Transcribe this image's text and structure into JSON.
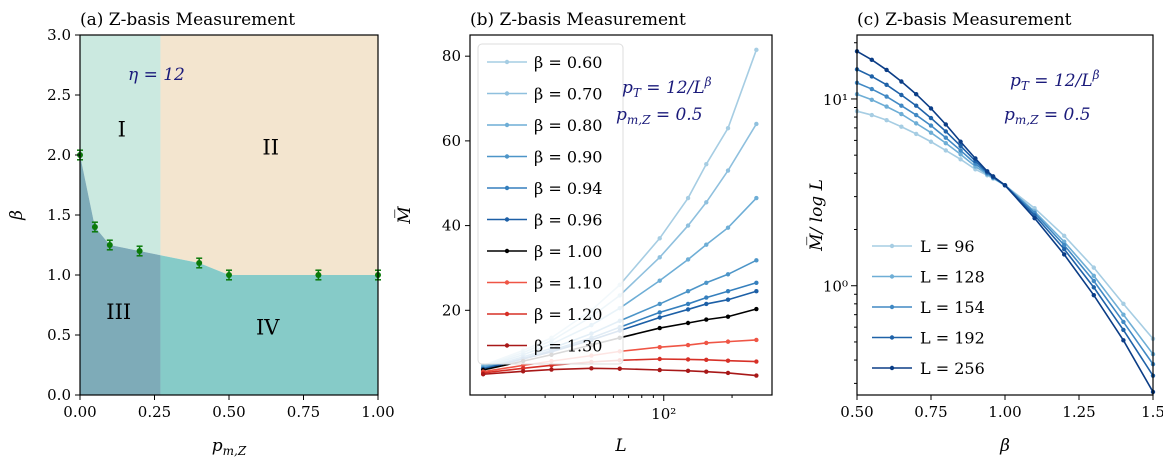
{
  "chart_data": [
    {
      "type": "phase_diagram",
      "title": "(a) Z-basis Measurement",
      "xlabel": "p_{m,Z}",
      "ylabel": "β",
      "xlim": [
        0,
        1
      ],
      "ylim": [
        0,
        3
      ],
      "xticks": [
        "0.00",
        "0.25",
        "0.50",
        "0.75",
        "1.00"
      ],
      "yticks": [
        "0.0",
        "0.5",
        "1.0",
        "1.5",
        "2.0",
        "2.5",
        "3.0"
      ],
      "annotation": "η = 12",
      "vertical_boundary_x": 0.27,
      "boundary_points": [
        {
          "x": 0.0,
          "y": 2.0
        },
        {
          "x": 0.05,
          "y": 1.4
        },
        {
          "x": 0.1,
          "y": 1.25
        },
        {
          "x": 0.2,
          "y": 1.2
        },
        {
          "x": 0.4,
          "y": 1.1
        },
        {
          "x": 0.5,
          "y": 1.0
        },
        {
          "x": 0.8,
          "y": 1.0
        },
        {
          "x": 1.0,
          "y": 1.0
        }
      ],
      "error": 0.04,
      "regions": [
        {
          "label": "I",
          "x": 0.14,
          "y": 2.2,
          "color": "#cbe9e0"
        },
        {
          "label": "II",
          "x": 0.64,
          "y": 2.05,
          "color": "#f3e5cf"
        },
        {
          "label": "III",
          "x": 0.13,
          "y": 0.68,
          "color": "#7eabb8"
        },
        {
          "label": "IV",
          "x": 0.63,
          "y": 0.55,
          "color": "#86cbc8"
        }
      ],
      "marker_color": "#0a7a0a"
    },
    {
      "type": "line",
      "title": "(b) Z-basis Measurement",
      "xlabel": "L",
      "ylabel": "M̅",
      "xscale": "log",
      "xlim": [
        14,
        300
      ],
      "ylim": [
        0,
        85
      ],
      "yticks": [
        "20",
        "40",
        "60",
        "80"
      ],
      "xtick_label": "10²",
      "x": [
        16,
        24,
        32,
        48,
        64,
        96,
        128,
        154,
        192,
        256
      ],
      "annotations": [
        "p_T = 12/L^β",
        "p_{m,Z} = 0.5"
      ],
      "series": [
        {
          "name": "β = 0.60",
          "color": "#a6cde3",
          "values": [
            7.0,
            10.5,
            13.5,
            20.0,
            26.0,
            37.0,
            46.5,
            54.5,
            63.0,
            81.5
          ]
        },
        {
          "name": "β = 0.70",
          "color": "#8fc0de",
          "values": [
            6.8,
            10.0,
            12.8,
            18.5,
            23.5,
            32.5,
            40.0,
            45.5,
            53.0,
            64.0
          ]
        },
        {
          "name": "β = 0.80",
          "color": "#6eaed6",
          "values": [
            6.6,
            9.5,
            12.0,
            16.5,
            20.5,
            27.0,
            32.0,
            35.5,
            39.5,
            46.5
          ]
        },
        {
          "name": "β = 0.90",
          "color": "#4d95c8",
          "values": [
            6.3,
            9.0,
            11.0,
            14.5,
            17.5,
            21.5,
            24.5,
            26.5,
            28.5,
            31.8
          ]
        },
        {
          "name": "β = 0.94",
          "color": "#357fbd",
          "values": [
            6.2,
            8.6,
            10.5,
            13.5,
            16.0,
            19.5,
            21.5,
            23.0,
            24.5,
            26.5
          ]
        },
        {
          "name": "β = 0.96",
          "color": "#1c5fa6",
          "values": [
            6.1,
            8.5,
            10.2,
            13.0,
            15.2,
            18.3,
            20.2,
            21.5,
            22.5,
            24.5
          ]
        },
        {
          "name": "β = 1.00",
          "color": "#000000",
          "values": [
            5.9,
            8.0,
            9.5,
            11.8,
            13.5,
            15.8,
            17.0,
            17.8,
            18.5,
            20.3
          ]
        },
        {
          "name": "β = 1.10",
          "color": "#ef5545",
          "values": [
            5.5,
            7.0,
            8.0,
            9.3,
            10.3,
            11.3,
            11.8,
            12.3,
            12.6,
            13.0
          ]
        },
        {
          "name": "β = 1.20",
          "color": "#d73027",
          "values": [
            5.2,
            6.3,
            7.0,
            7.8,
            8.2,
            8.5,
            8.4,
            8.3,
            8.1,
            7.9
          ]
        },
        {
          "name": "β = 1.30",
          "color": "#a81818",
          "values": [
            4.9,
            5.6,
            6.0,
            6.3,
            6.2,
            5.9,
            5.7,
            5.5,
            5.2,
            4.6
          ]
        }
      ]
    },
    {
      "type": "line",
      "title": "(c) Z-basis Measurement",
      "xlabel": "β",
      "ylabel": "M̅/ log L",
      "yscale": "log",
      "xlim": [
        0.5,
        1.5
      ],
      "ylim": [
        0.26,
        22
      ],
      "xticks": [
        "0.50",
        "0.75",
        "1.00",
        "1.25",
        "1.5"
      ],
      "ytick_labels": [
        "10⁰",
        "10¹"
      ],
      "annotations": [
        "p_T = 12/L^β",
        "p_{m,Z} = 0.5"
      ],
      "x": [
        0.5,
        0.55,
        0.6,
        0.65,
        0.7,
        0.75,
        0.8,
        0.85,
        0.9,
        0.94,
        0.96,
        1.0,
        1.1,
        1.2,
        1.3,
        1.4,
        1.5
      ],
      "series": [
        {
          "name": "L = 96",
          "color": "#a6cde3",
          "values": [
            8.6,
            8.2,
            7.7,
            7.1,
            6.5,
            5.9,
            5.3,
            4.75,
            4.2,
            3.9,
            3.75,
            3.45,
            2.6,
            1.85,
            1.25,
            0.8,
            0.52
          ]
        },
        {
          "name": "L = 128",
          "color": "#6eaed6",
          "values": [
            10.6,
            9.9,
            9.1,
            8.3,
            7.4,
            6.6,
            5.8,
            5.05,
            4.35,
            3.95,
            3.78,
            3.45,
            2.5,
            1.72,
            1.13,
            0.7,
            0.43
          ]
        },
        {
          "name": "L = 154",
          "color": "#4189c4",
          "values": [
            12.2,
            11.3,
            10.3,
            9.2,
            8.2,
            7.2,
            6.2,
            5.3,
            4.5,
            4.0,
            3.8,
            3.45,
            2.45,
            1.65,
            1.06,
            0.64,
            0.38
          ]
        },
        {
          "name": "L = 192",
          "color": "#1f62a8",
          "values": [
            14.4,
            13.2,
            11.9,
            10.5,
            9.2,
            7.9,
            6.7,
            5.6,
            4.65,
            4.05,
            3.82,
            3.45,
            2.38,
            1.57,
            0.98,
            0.58,
            0.33
          ]
        },
        {
          "name": "L = 256",
          "color": "#0b3d86",
          "values": [
            18.0,
            16.2,
            14.3,
            12.4,
            10.6,
            8.9,
            7.3,
            5.9,
            4.8,
            4.1,
            3.85,
            3.45,
            2.3,
            1.47,
            0.89,
            0.51,
            0.27
          ]
        }
      ]
    }
  ]
}
